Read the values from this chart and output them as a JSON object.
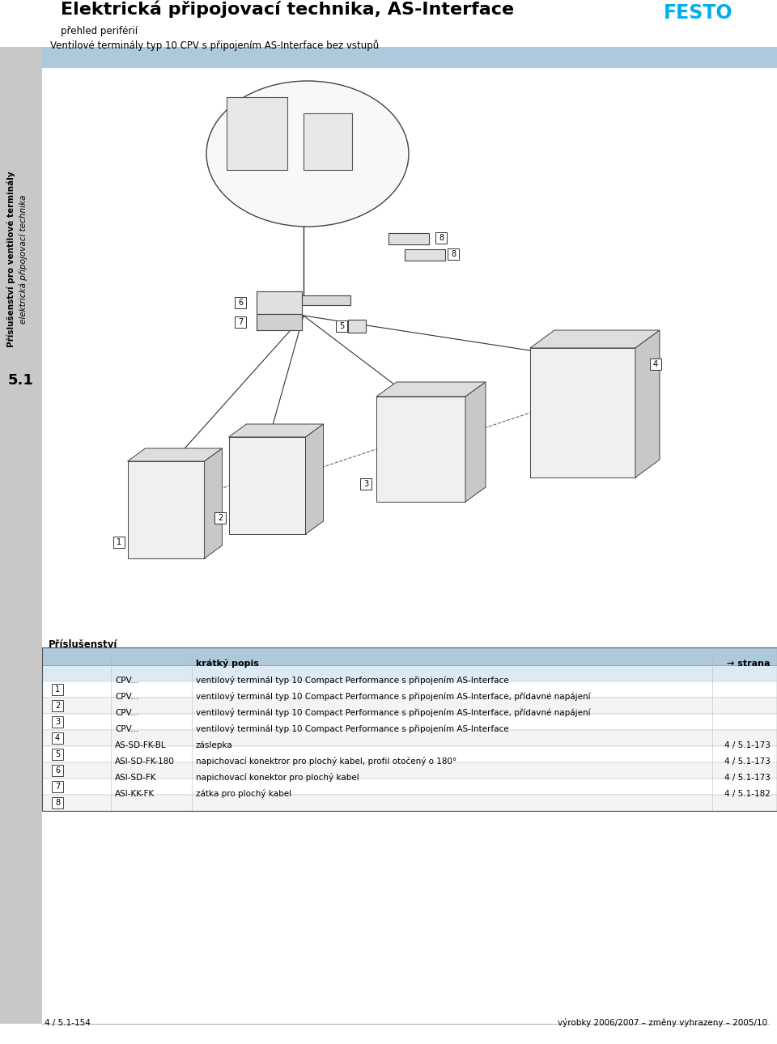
{
  "title": "Elektrická připojovací technika, AS-Interface",
  "subtitle": "přehled periférií",
  "festo_color": "#00AEEF",
  "sidebar_color": "#C8C8C8",
  "sidebar_text1": "Příslušenství pro ventilové terminály",
  "sidebar_text2": "elektrická připojovací technika",
  "sidebar_number": "5.1",
  "header_bar_color": "#AEC8DC",
  "header_bar_text": "Ventilové terminály typ 10 CPV s připojením AS-Interface bez vstupů",
  "table_header_color": "#AEC8DC",
  "table_header_title": "Příslušenství",
  "table_col2_header": "krátký popis",
  "table_col3_header": "→ strana",
  "table_rows": [
    [
      "1",
      "CPV...",
      "ventilový terminál typ 10 Compact Performance s připojením AS-Interface",
      ""
    ],
    [
      "2",
      "CPV...",
      "ventilový terminál typ 10 Compact Performance s připojením AS-Interface, přídavné napájení",
      ""
    ],
    [
      "3",
      "CPV...",
      "ventilový terminál typ 10 Compact Performance s připojením AS-Interface, přídavné napájení",
      ""
    ],
    [
      "4",
      "CPV...",
      "ventilový terminál typ 10 Compact Performance s připojením AS-Interface",
      ""
    ],
    [
      "5",
      "AS-SD-FK-BL",
      "záslepka",
      "4 / 5.1-173"
    ],
    [
      "6",
      "ASI-SD-FK-180",
      "napichovací konektror pro plochý kabel, profil otočený o 180°",
      "4 / 5.1-173"
    ],
    [
      "7",
      "ASI-SD-FK",
      "napichovací konektor pro plochý kabel",
      "4 / 5.1-173"
    ],
    [
      "8",
      "ASI-KK-FK",
      "zátka pro plochý kabel",
      "4 / 5.1-182"
    ]
  ],
  "footer_left": "4 / 5.1-154",
  "footer_right": "výrobky 2006/2007 – změny vyhrazeny – 2005/10",
  "bg_color": "#FFFFFF"
}
